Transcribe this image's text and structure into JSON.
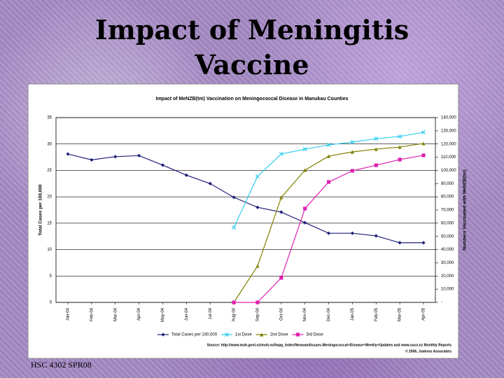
{
  "slide": {
    "title": "Impact of Meningitis Vaccine",
    "footer": "HSC 4302 SPR08"
  },
  "chart_data": {
    "type": "line",
    "title": "Impact of MeNZB(tm) Vaccination on Meningococcal Disease in Manukau Counties",
    "ylabel": "Total Cases per 100,000",
    "y2label": "Numbers Vaccinated with MeNZB(tm)",
    "source": "Source: http://www.moh.govt.nz/moh.nsf/wpg_Index/Newsandissues-Meningococcal+Disease+Weekly+Updates and www.ssco.nz Monthly Reports",
    "copyright": "© 2006, Juderos Associates",
    "categories": [
      "Jan-04",
      "Feb-04",
      "Mar-04",
      "Apr-04",
      "May-04",
      "Jun-04",
      "Jul-04",
      "Aug-04",
      "Sep-04",
      "Oct-04",
      "Nov-04",
      "Dec-04",
      "Jan-05",
      "Feb-05",
      "Mar-05",
      "Apr-05"
    ],
    "ylim": [
      0,
      35
    ],
    "yticks": [
      0,
      5,
      10,
      15,
      20,
      25,
      30,
      35
    ],
    "y2lim": [
      0,
      140000
    ],
    "y2ticks": [
      {
        "value": 0,
        "label": "-"
      },
      {
        "value": 10000,
        "label": "10,000"
      },
      {
        "value": 20000,
        "label": "20,000"
      },
      {
        "value": 30000,
        "label": "30,000"
      },
      {
        "value": 40000,
        "label": "40,000"
      },
      {
        "value": 50000,
        "label": "50,000"
      },
      {
        "value": 60000,
        "label": "60,000"
      },
      {
        "value": 70000,
        "label": "70,000"
      },
      {
        "value": 80000,
        "label": "80,000"
      },
      {
        "value": 90000,
        "label": "90,000"
      },
      {
        "value": 100000,
        "label": "100,000"
      },
      {
        "value": 110000,
        "label": "110,000"
      },
      {
        "value": 120000,
        "label": "120,000"
      },
      {
        "value": 130000,
        "label": "130,000"
      },
      {
        "value": 140000,
        "label": "140,000"
      }
    ],
    "grid": true,
    "series": [
      {
        "name": "Total Cases per 100,000",
        "color": "#1f1f7a",
        "marker": "diamond",
        "values": [
          28.1,
          27.0,
          27.6,
          27.8,
          26.0,
          24.1,
          22.5,
          19.9,
          18.0,
          17.1,
          15.1,
          13.1,
          13.1,
          12.6,
          11.3,
          11.3
        ]
      },
      {
        "name": "1st Dose",
        "color": "#33ccee",
        "marker": "x",
        "axis": "y2",
        "values": [
          null,
          null,
          null,
          null,
          null,
          null,
          null,
          56700,
          95500,
          112400,
          116100,
          119300,
          121400,
          124000,
          125700,
          128900
        ]
      },
      {
        "name": "2nd Dose",
        "color": "#808000",
        "marker": "triangle",
        "axis": "y2",
        "values": [
          null,
          null,
          null,
          null,
          null,
          null,
          null,
          0,
          27600,
          79500,
          100200,
          110800,
          114000,
          116100,
          117700,
          120400
        ]
      },
      {
        "name": "3rd Dose",
        "color": "#e020b0",
        "marker": "square",
        "axis": "y2",
        "values": [
          null,
          null,
          null,
          null,
          null,
          null,
          null,
          0,
          0,
          18600,
          71100,
          91200,
          99700,
          103900,
          108200,
          111400
        ]
      }
    ]
  }
}
